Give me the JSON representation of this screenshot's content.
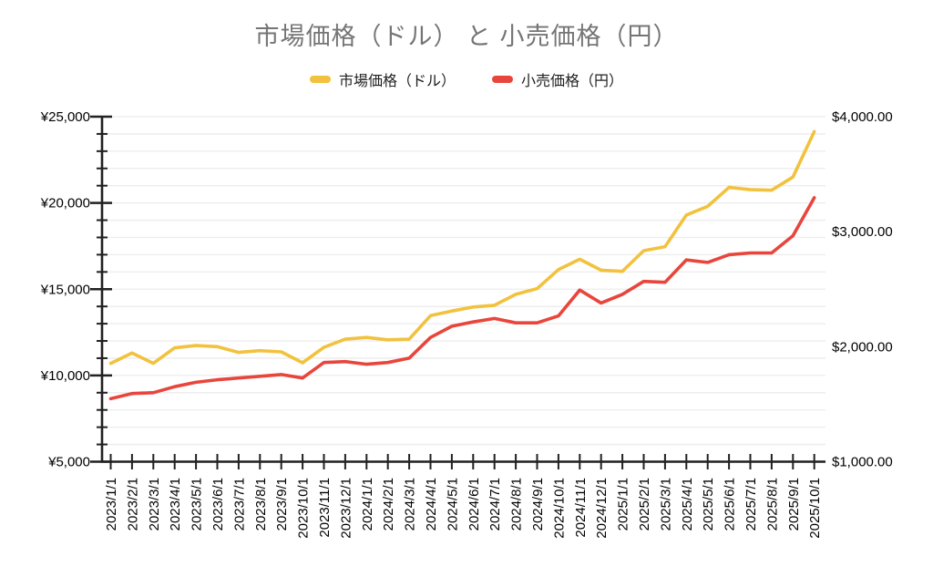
{
  "chart_data": {
    "type": "line",
    "title": "市場価格（ドル） と 小売価格（円）",
    "title_color": "#757575",
    "legend_position": "top",
    "grid": true,
    "x_labels": [
      "2023/1/1",
      "2023/2/1",
      "2023/3/1",
      "2023/4/1",
      "2023/5/1",
      "2023/6/1",
      "2023/7/1",
      "2023/8/1",
      "2023/9/1",
      "2023/10/1",
      "2023/11/1",
      "2023/12/1",
      "2024/1/1",
      "2024/2/1",
      "2024/3/1",
      "2024/4/1",
      "2024/5/1",
      "2024/6/1",
      "2024/7/1",
      "2024/8/1",
      "2024/9/1",
      "2024/10/1",
      "2024/11/1",
      "2024/12/1",
      "2025/1/1",
      "2025/2/1",
      "2025/3/1",
      "2025/4/1",
      "2025/5/1",
      "2025/6/1",
      "2025/7/1",
      "2025/8/1",
      "2025/9/1",
      "2025/10/1"
    ],
    "series": [
      {
        "name": "市場価格（ドル）",
        "axis": "right",
        "color": "#F2C23E",
        "values": [
          1855,
          1945,
          1855,
          1990,
          2010,
          2000,
          1950,
          1965,
          1955,
          1860,
          1995,
          2065,
          2080,
          2060,
          2065,
          2270,
          2310,
          2345,
          2360,
          2455,
          2505,
          2670,
          2760,
          2665,
          2655,
          2835,
          2870,
          3145,
          3220,
          3385,
          3365,
          3360,
          3475,
          3870
        ]
      },
      {
        "name": "小売価格（円）",
        "axis": "left",
        "color": "#E8463C",
        "values": [
          8650,
          8950,
          9000,
          9350,
          9600,
          9750,
          9850,
          9950,
          10050,
          9850,
          10750,
          10800,
          10650,
          10750,
          11000,
          12200,
          12850,
          13100,
          13300,
          13050,
          13050,
          13450,
          14950,
          14200,
          14700,
          15450,
          15400,
          16700,
          16550,
          17000,
          17100,
          17100,
          18100,
          20300
        ]
      }
    ],
    "left_axis": {
      "min": 5000,
      "max": 25000,
      "minor_step": 1000,
      "major_step": 5000,
      "labels": [
        "¥25,000",
        "¥20,000",
        "¥15,000",
        "¥10,000",
        "¥5,000"
      ]
    },
    "right_axis": {
      "min": 1000,
      "max": 4000,
      "step": 1000,
      "labels": [
        "$4,000.00",
        "$3,000.00",
        "$2,000.00",
        "$1,000.00"
      ]
    },
    "colors": {
      "grid": "#ececec",
      "axis": "#212121",
      "tick_label": "#000000"
    }
  }
}
